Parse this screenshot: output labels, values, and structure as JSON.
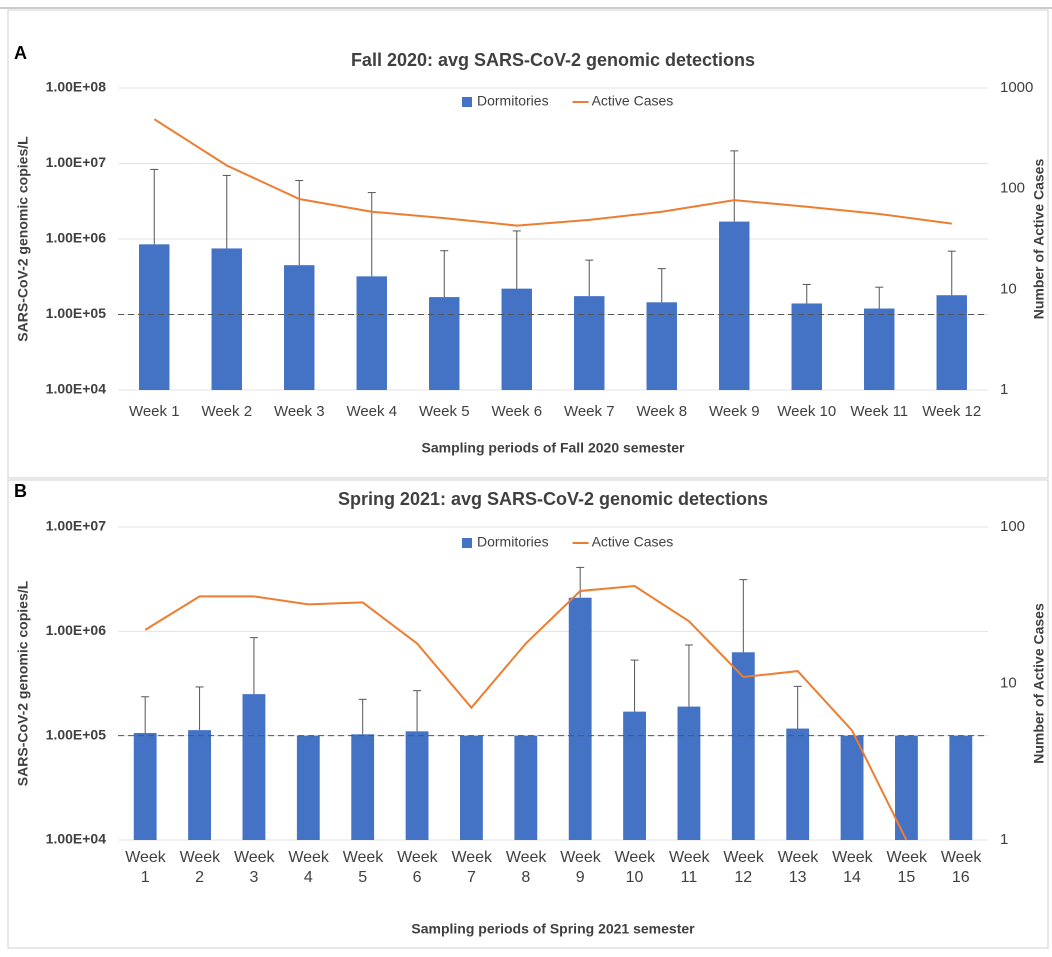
{
  "chart_data": [
    {
      "type": "bar",
      "panel_label": "A",
      "title": "Fall 2020: avg SARS-CoV-2 genomic detections",
      "xlabel": "Sampling periods of Fall 2020 semester",
      "ylabel": "SARS-CoV-2 genomic copies/L",
      "y2label": "Number of Active Cases",
      "categories": [
        "Week 1",
        "Week 2",
        "Week 3",
        "Week 4",
        "Week 5",
        "Week 6",
        "Week 7",
        "Week 8",
        "Week 9",
        "Week 10",
        "Week 11",
        "Week 12"
      ],
      "series": [
        {
          "name": "Dormitories",
          "type": "bar",
          "color": "#4472c4",
          "values": [
            850000,
            750000,
            450000,
            320000,
            170000,
            220000,
            175000,
            145000,
            1700000,
            140000,
            120000,
            180000
          ],
          "errors": [
            7500000,
            6200000,
            5500000,
            3800000,
            530000,
            1060000,
            350000,
            260000,
            13000000,
            110000,
            110000,
            510000
          ]
        },
        {
          "name": "Active Cases",
          "type": "line",
          "color": "#ed7d31",
          "axis": "y2",
          "values": [
            490,
            170,
            79,
            59,
            51,
            43,
            49,
            59,
            77,
            66,
            56,
            45
          ]
        }
      ],
      "ylim": [
        10000,
        100000000
      ],
      "yticks": [
        {
          "value": 10000,
          "label": "1.00E+04"
        },
        {
          "value": 100000,
          "label": "1.00E+05"
        },
        {
          "value": 1000000,
          "label": "1.00E+06"
        },
        {
          "value": 10000000,
          "label": "1.00E+07"
        },
        {
          "value": 100000000,
          "label": "1.00E+08"
        }
      ],
      "y2lim": [
        1,
        1000
      ],
      "y2ticks": [
        1,
        10,
        100,
        1000
      ],
      "ylog": true,
      "y2log": true,
      "grid": true,
      "reference_line": 100000
    },
    {
      "type": "bar",
      "panel_label": "B",
      "title": "Spring 2021: avg SARS-CoV-2 genomic detections",
      "xlabel": "Sampling periods of Spring 2021 semester",
      "ylabel": "SARS-CoV-2 genomic copies/L",
      "y2label": "Number of Active Cases",
      "categories": [
        "Week 1",
        "Week 2",
        "Week 3",
        "Week 4",
        "Week 5",
        "Week 6",
        "Week 7",
        "Week 8",
        "Week 9",
        "Week 10",
        "Week 11",
        "Week 12",
        "Week 13",
        "Week 14",
        "Week 15",
        "Week 16"
      ],
      "series": [
        {
          "name": "Dormitories",
          "type": "bar",
          "color": "#4472c4",
          "values": [
            106000,
            113000,
            250000,
            100000,
            103000,
            110000,
            100000,
            100000,
            2100000,
            170000,
            190000,
            630000,
            117000,
            100000,
            100000,
            100000
          ],
          "errors": [
            130000,
            180000,
            620000,
            null,
            120000,
            160000,
            null,
            null,
            2000000,
            360000,
            550000,
            2500000,
            180000,
            null,
            null,
            null
          ]
        },
        {
          "name": "Active Cases",
          "type": "line",
          "color": "#ed7d31",
          "axis": "y2",
          "values": [
            22,
            36,
            36,
            32,
            33,
            18,
            7,
            18,
            39,
            42,
            25,
            11,
            12,
            5,
            1,
            null
          ]
        }
      ],
      "ylim": [
        10000,
        10000000
      ],
      "yticks": [
        {
          "value": 10000,
          "label": "1.00E+04"
        },
        {
          "value": 100000,
          "label": "1.00E+05"
        },
        {
          "value": 1000000,
          "label": "1.00E+06"
        },
        {
          "value": 10000000,
          "label": "1.00E+07"
        }
      ],
      "y2lim": [
        1,
        100
      ],
      "y2ticks": [
        1,
        10,
        100
      ],
      "ylog": true,
      "y2log": true,
      "grid": true,
      "reference_line": 100000
    }
  ]
}
